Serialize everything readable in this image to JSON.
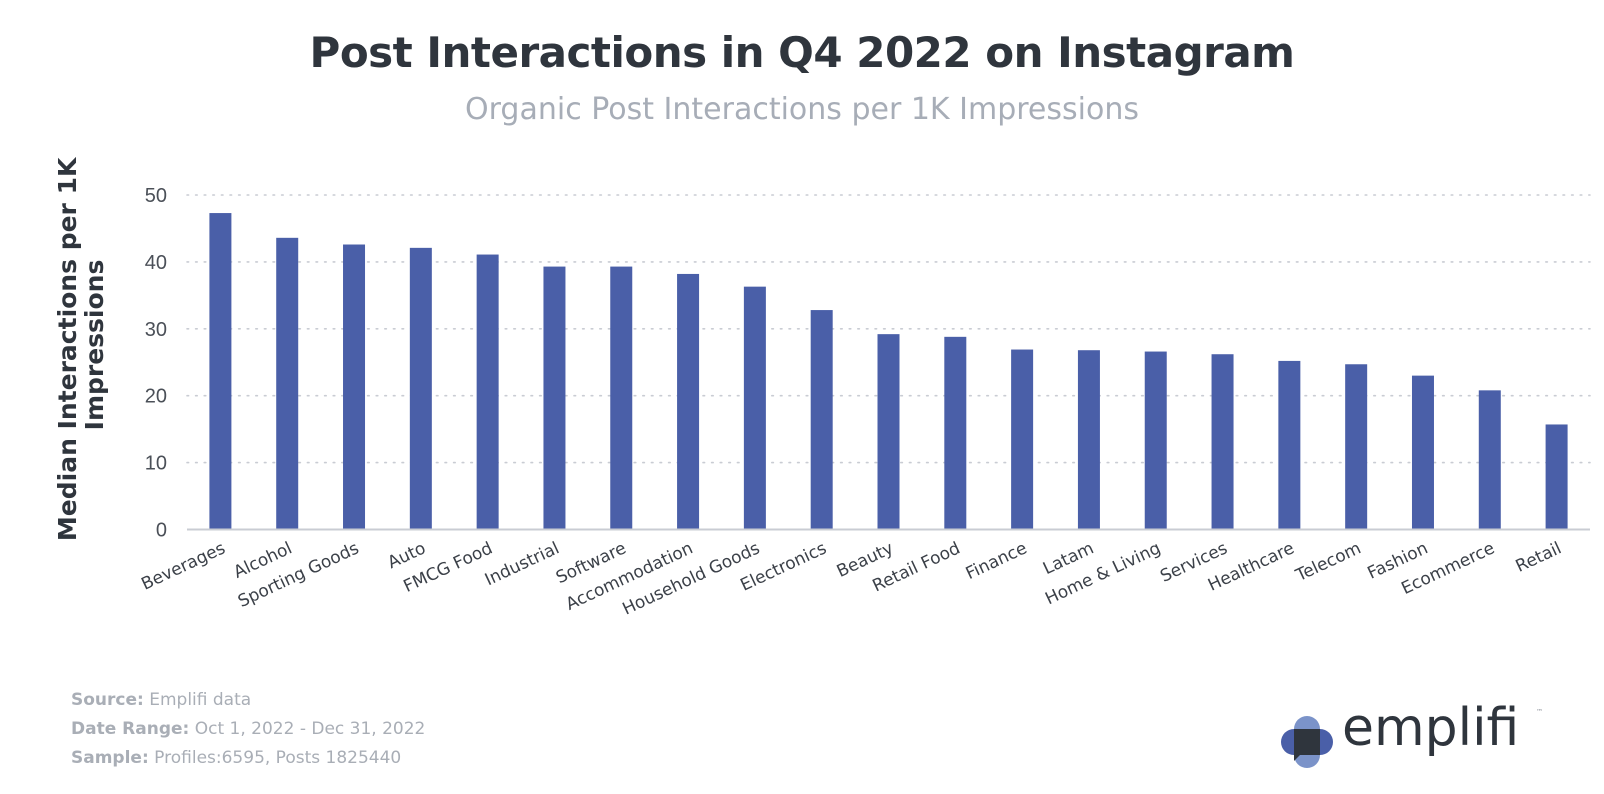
{
  "title": "Post Interactions in Q4 2022 on Instagram",
  "subtitle": "Organic Post Interactions per 1K Impressions",
  "chart_data": {
    "type": "bar",
    "title": "Post Interactions in Q4 2022 on Instagram",
    "subtitle": "Organic Post Interactions per 1K Impressions",
    "xlabel": "",
    "ylabel": "Median Interactions per 1K Impressions",
    "ylabel_lines": [
      "Median Interactions per 1K",
      "Impressions"
    ],
    "ylim": [
      0,
      50
    ],
    "yticks": [
      0,
      10,
      20,
      30,
      40,
      50
    ],
    "grid": "horizontal-dotted",
    "bar_color": "#4a5fa8",
    "categories": [
      "Beverages",
      "Alcohol",
      "Sporting Goods",
      "Auto",
      "FMCG Food",
      "Industrial",
      "Software",
      "Accommodation",
      "Household Goods",
      "Electronics",
      "Beauty",
      "Retail Food",
      "Finance",
      "Latam",
      "Home & Living",
      "Services",
      "Healthcare",
      "Telecom",
      "Fashion",
      "Ecommerce",
      "Retail"
    ],
    "values": [
      47.3,
      43.6,
      42.6,
      42.1,
      41.1,
      39.3,
      39.3,
      38.2,
      36.3,
      32.8,
      29.2,
      28.8,
      26.9,
      26.8,
      26.6,
      26.2,
      25.2,
      24.7,
      23.0,
      20.8,
      15.7
    ]
  },
  "footer": {
    "source_label": "Source:",
    "source_value": "Emplifi data",
    "date_label": "Date Range:",
    "date_value": "Oct 1, 2022 - Dec 31, 2022",
    "sample_label": "Sample:",
    "sample_value": "Profiles:6595, Posts 1825440"
  },
  "logo": {
    "text": "emplifi",
    "trademark": "™",
    "colors": {
      "light": "#7b93c9",
      "mid": "#4a5fa8",
      "dark": "#2f353d"
    }
  }
}
